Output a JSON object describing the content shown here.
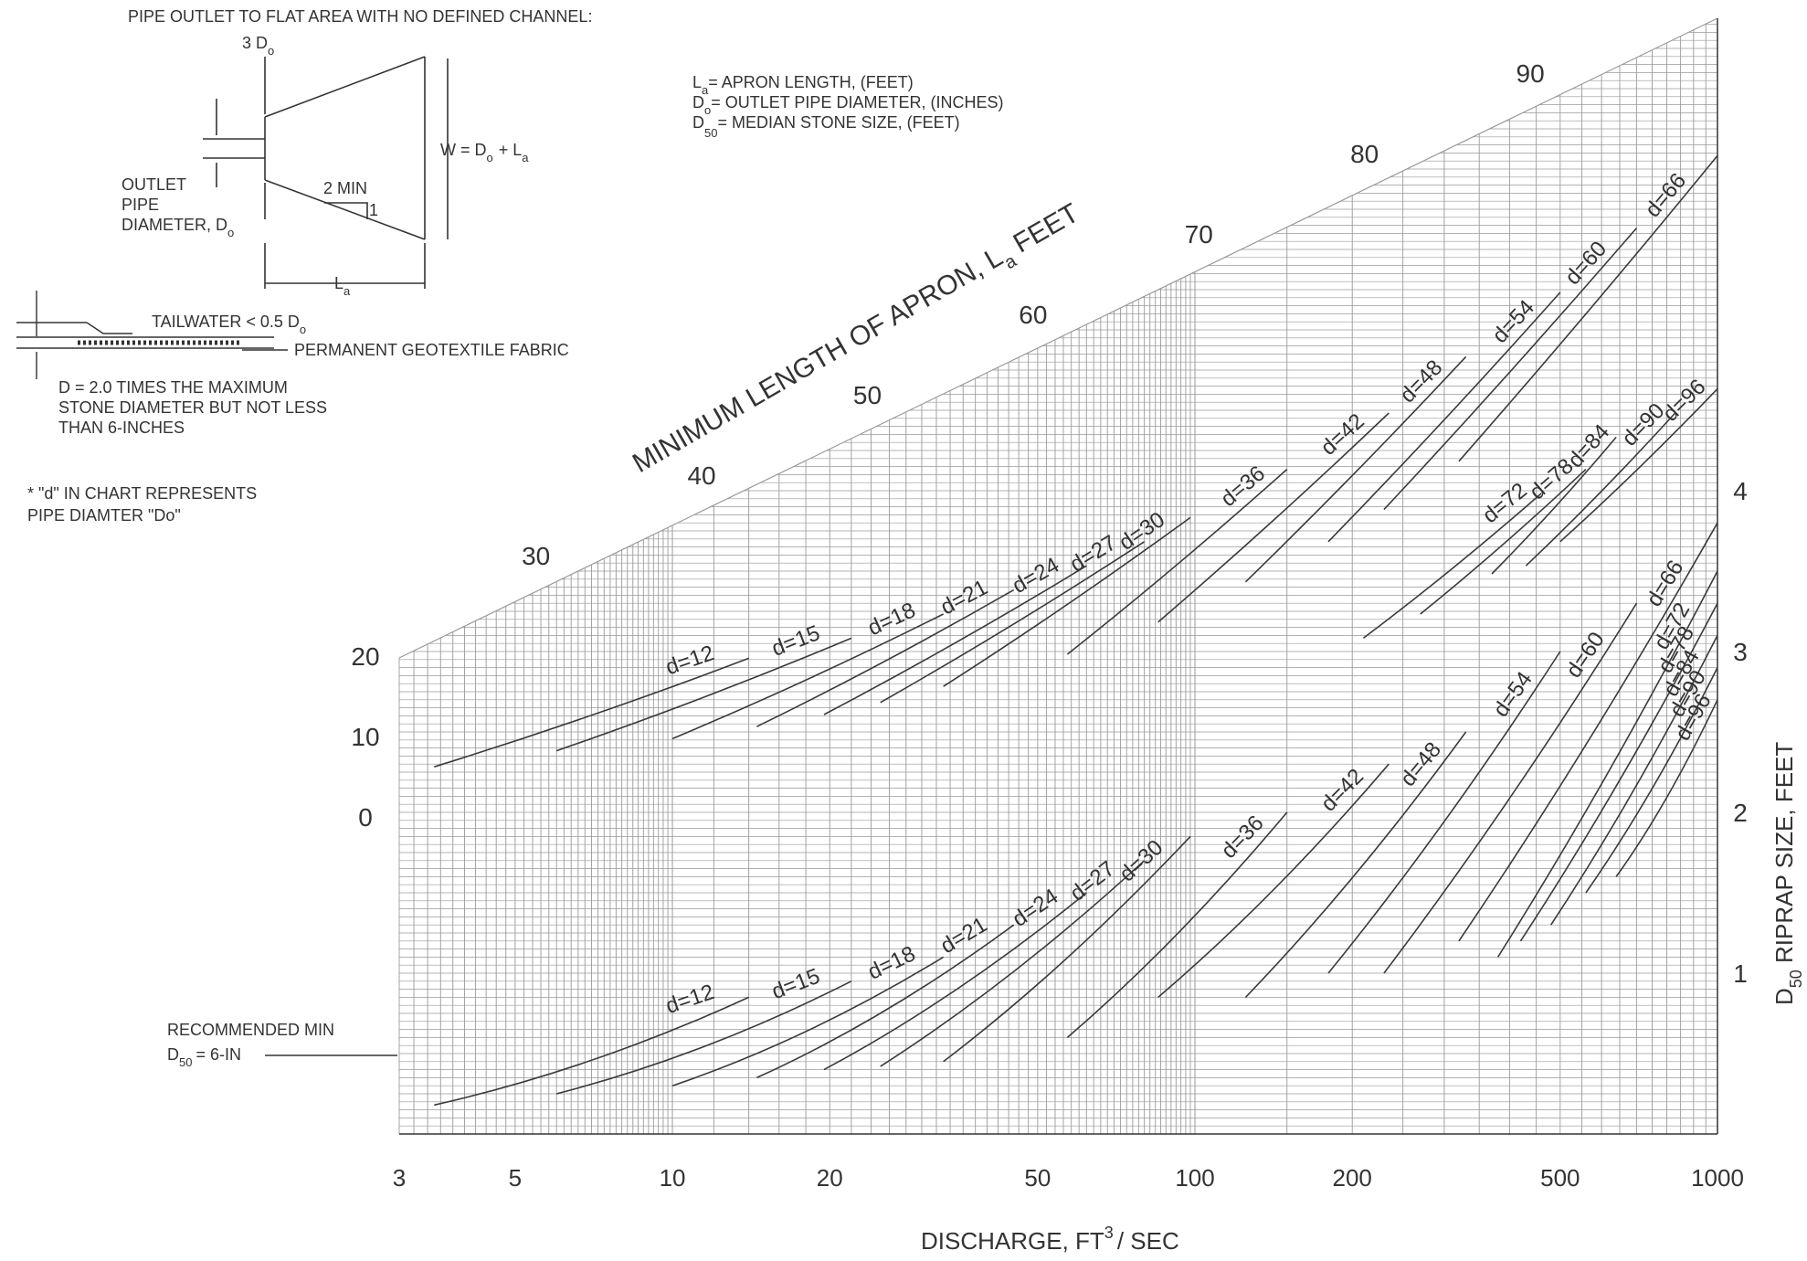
{
  "schematic": {
    "title": "PIPE OUTLET TO FLAT AREA WITH NO DEFINED CHANNEL:",
    "width_3d_main": "3 D",
    "width_3d_sub": "o",
    "w_eq_main": "W = D",
    "w_eq_sub": "o",
    "w_eq_rest": "+ L",
    "w_eq_sub2": "a",
    "slope_min": "2 MIN",
    "slope_one": "1",
    "outlet_l1": "OUTLET",
    "outlet_l2": "PIPE",
    "outlet_l3_main": "DIAMETER, D",
    "outlet_l3_sub": "o",
    "la_main": "L",
    "la_sub": "a",
    "tailwater_main": "TAILWATER < 0.5 D",
    "tailwater_sub": "o",
    "fabric": "PERMANENT GEOTEXTILE FABRIC",
    "depth_l1": "D = 2.0 TIMES THE MAXIMUM",
    "depth_l2": "STONE DIAMETER BUT NOT LESS",
    "depth_l3": "THAN 6-INCHES",
    "note_l1": "* \"d\" IN CHART REPRESENTS",
    "note_l2": "PIPE DIAMTER \"Do\""
  },
  "legend": {
    "la_main": "L",
    "la_sub": "a",
    "la_text": "= APRON LENGTH, (FEET)",
    "do_main": "D",
    "do_sub": "o",
    "do_text": "= OUTLET PIPE DIAMETER, (INCHES)",
    "d50_main": "D",
    "d50_sub": "50",
    "d50_text": "= MEDIAN STONE SIZE, (FEET)"
  },
  "recommended": {
    "line1": "RECOMMENDED MIN",
    "line2_main": "D",
    "line2_sub": "50",
    "line2_rest": "= 6-IN"
  },
  "chart_data": {
    "type": "line",
    "xscale": "log",
    "xlim": [
      3,
      1000
    ],
    "x_ticks": [
      3,
      5,
      10,
      20,
      50,
      100,
      200,
      500,
      1000
    ],
    "xlabel_main": "DISCHARGE, FT",
    "xlabel_sup": "3",
    "xlabel_rest": "/ SEC",
    "apron_axis": {
      "label_main": "MINIMUM LENGTH OF APRON, L",
      "label_sub": "a",
      "label_rest": " FEET",
      "ticks": [
        0,
        10,
        20,
        30,
        40,
        50,
        60,
        70,
        80,
        90
      ]
    },
    "riprap_axis": {
      "label_main": "D",
      "label_sub": "50",
      "label_rest": "  RIPRAP SIZE, FEET",
      "ylim": [
        0,
        4.5
      ],
      "ticks": [
        1,
        2,
        3,
        4
      ]
    },
    "apron_series": [
      {
        "name": "d=12",
        "x": [
          3.5,
          14
        ],
        "y": [
          6,
          19.5
        ]
      },
      {
        "name": "d=15",
        "x": [
          6,
          22
        ],
        "y": [
          8,
          22
        ]
      },
      {
        "name": "d=18",
        "x": [
          10,
          33
        ],
        "y": [
          9.5,
          25
        ]
      },
      {
        "name": "d=21",
        "x": [
          14.5,
          45
        ],
        "y": [
          11,
          28
        ]
      },
      {
        "name": "d=24",
        "x": [
          19.5,
          62
        ],
        "y": [
          12.5,
          31
        ]
      },
      {
        "name": "d=27",
        "x": [
          25,
          80
        ],
        "y": [
          14,
          34
        ]
      },
      {
        "name": "d=30",
        "x": [
          33,
          98
        ],
        "y": [
          16,
          37
        ]
      },
      {
        "name": "d=36",
        "x": [
          57,
          150
        ],
        "y": [
          20,
          43
        ]
      },
      {
        "name": "d=42",
        "x": [
          85,
          235
        ],
        "y": [
          24,
          50
        ]
      },
      {
        "name": "d=48",
        "x": [
          125,
          330
        ],
        "y": [
          29,
          57
        ]
      },
      {
        "name": "d=54",
        "x": [
          180,
          500
        ],
        "y": [
          34,
          65
        ]
      },
      {
        "name": "d=60",
        "x": [
          230,
          700
        ],
        "y": [
          38,
          73
        ]
      },
      {
        "name": "d=66",
        "x": [
          320,
          1000
        ],
        "y": [
          44,
          82
        ]
      },
      {
        "name": "d=72",
        "x": [
          210,
          460
        ],
        "y": [
          22,
          40
        ]
      },
      {
        "name": "d=78",
        "x": [
          270,
          560
        ],
        "y": [
          25,
          43
        ]
      },
      {
        "name": "d=84",
        "x": [
          370,
          640
        ],
        "y": [
          30,
          47
        ]
      },
      {
        "name": "d=90",
        "x": [
          430,
          830
        ],
        "y": [
          31,
          50
        ]
      },
      {
        "name": "d=96",
        "x": [
          500,
          1000
        ],
        "y": [
          34,
          53
        ]
      }
    ],
    "riprap_series": [
      {
        "name": "d=12",
        "x": [
          3.5,
          14
        ],
        "y": [
          0.18,
          0.85
        ]
      },
      {
        "name": "d=15",
        "x": [
          6,
          22
        ],
        "y": [
          0.25,
          0.95
        ]
      },
      {
        "name": "d=18",
        "x": [
          10,
          33
        ],
        "y": [
          0.3,
          1.1
        ]
      },
      {
        "name": "d=21",
        "x": [
          14.5,
          45
        ],
        "y": [
          0.35,
          1.3
        ]
      },
      {
        "name": "d=24",
        "x": [
          19.5,
          62
        ],
        "y": [
          0.4,
          1.5
        ]
      },
      {
        "name": "d=27",
        "x": [
          25,
          80
        ],
        "y": [
          0.42,
          1.7
        ]
      },
      {
        "name": "d=30",
        "x": [
          33,
          98
        ],
        "y": [
          0.45,
          1.85
        ]
      },
      {
        "name": "d=36",
        "x": [
          57,
          150
        ],
        "y": [
          0.6,
          2.0
        ]
      },
      {
        "name": "d=42",
        "x": [
          85,
          235
        ],
        "y": [
          0.85,
          2.3
        ]
      },
      {
        "name": "d=48",
        "x": [
          125,
          330
        ],
        "y": [
          0.85,
          2.5
        ]
      },
      {
        "name": "d=54",
        "x": [
          180,
          500
        ],
        "y": [
          1.0,
          3.0
        ]
      },
      {
        "name": "d=60",
        "x": [
          230,
          700
        ],
        "y": [
          1.0,
          3.3
        ]
      },
      {
        "name": "d=66",
        "x": [
          320,
          1000
        ],
        "y": [
          1.2,
          3.8
        ]
      },
      {
        "name": "d=72",
        "x": [
          380,
          1000
        ],
        "y": [
          1.1,
          3.5
        ]
      },
      {
        "name": "d=78",
        "x": [
          420,
          1000
        ],
        "y": [
          1.2,
          3.3
        ]
      },
      {
        "name": "d=84",
        "x": [
          480,
          1000
        ],
        "y": [
          1.3,
          3.1
        ]
      },
      {
        "name": "d=90",
        "x": [
          560,
          1000
        ],
        "y": [
          1.5,
          2.9
        ]
      },
      {
        "name": "d=96",
        "x": [
          640,
          1000
        ],
        "y": [
          1.6,
          2.7
        ]
      }
    ]
  },
  "colors": {
    "grid": "#9a9a9a",
    "ink": "#333333",
    "curve": "#3a3a3a"
  }
}
